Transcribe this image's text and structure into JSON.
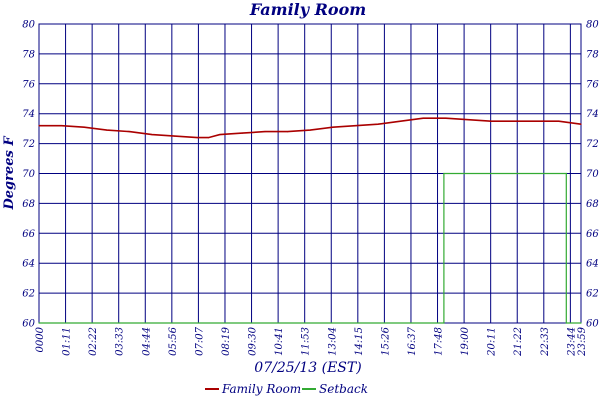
{
  "chart_data": {
    "type": "line",
    "title": "Family Room",
    "ylabel": "Degrees F",
    "xlabel": "07/25/13 (EST)",
    "ylim": [
      60,
      80
    ],
    "yticks": [
      "60",
      "62",
      "64",
      "66",
      "68",
      "70",
      "72",
      "74",
      "76",
      "78",
      "80"
    ],
    "xticks": [
      "0000",
      "01:11",
      "02:22",
      "03:33",
      "04:44",
      "05:56",
      "07:07",
      "08:19",
      "09:30",
      "10:41",
      "11:53",
      "13:04",
      "14:15",
      "15:26",
      "16:37",
      "17:48",
      "19:00",
      "20:11",
      "21:22",
      "22:33",
      "23:44",
      "23:59"
    ],
    "grid": true,
    "legend": "bottom",
    "colors": {
      "family_room": "#aa0000",
      "setback": "#33aa33",
      "grid": "#000080",
      "text": "#000080"
    },
    "series": [
      {
        "name": "Family Room",
        "x": [
          "00:00",
          "01:00",
          "02:00",
          "03:00",
          "04:00",
          "05:00",
          "06:00",
          "07:00",
          "07:30",
          "08:00",
          "09:00",
          "10:00",
          "11:00",
          "12:00",
          "13:00",
          "14:00",
          "15:00",
          "16:00",
          "17:00",
          "18:00",
          "19:00",
          "20:00",
          "21:00",
          "22:00",
          "23:00",
          "23:59"
        ],
        "values": [
          73.2,
          73.2,
          73.1,
          72.9,
          72.8,
          72.6,
          72.5,
          72.4,
          72.4,
          72.6,
          72.7,
          72.8,
          72.8,
          72.9,
          73.1,
          73.2,
          73.3,
          73.5,
          73.7,
          73.7,
          73.6,
          73.5,
          73.5,
          73.5,
          73.5,
          73.3
        ]
      },
      {
        "name": "Setback",
        "x": [
          "00:00",
          "17:55",
          "17:55",
          "23:20",
          "23:20",
          "23:59"
        ],
        "values": [
          60,
          60,
          70,
          70,
          60,
          60
        ]
      }
    ]
  }
}
